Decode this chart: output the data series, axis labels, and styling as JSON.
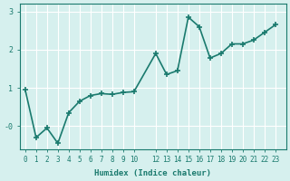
{
  "x": [
    0,
    1,
    2,
    3,
    4,
    5,
    6,
    7,
    8,
    9,
    10,
    12,
    13,
    14,
    15,
    16,
    17,
    18,
    19,
    20,
    21,
    22,
    23
  ],
  "y": [
    0.95,
    -0.3,
    -0.05,
    -0.45,
    0.35,
    0.65,
    0.8,
    0.85,
    0.83,
    0.88,
    0.9,
    1.9,
    1.35,
    1.45,
    2.85,
    2.6,
    1.78,
    1.9,
    2.15,
    2.15,
    2.25,
    2.45,
    2.65
  ],
  "line_color": "#1a7a6e",
  "marker": "+",
  "marker_size": 5,
  "bg_color": "#d6f0ee",
  "grid_color": "#ffffff",
  "xlabel": "Humidex (Indice chaleur)",
  "xlim": [
    -0.5,
    24
  ],
  "ylim": [
    -0.6,
    3.2
  ],
  "ytick_positions": [
    0,
    1,
    2,
    3
  ],
  "ytick_labels": [
    "-0",
    "1",
    "2",
    "3"
  ],
  "xtick_positions": [
    0,
    1,
    2,
    3,
    4,
    5,
    6,
    7,
    8,
    9,
    10,
    12,
    13,
    14,
    15,
    16,
    17,
    18,
    19,
    20,
    21,
    22,
    23
  ],
  "xtick_labels": [
    "0",
    "1",
    "2",
    "3",
    "4",
    "5",
    "6",
    "7",
    "8",
    "9",
    "10",
    "12",
    "13",
    "14",
    "15",
    "16",
    "17",
    "18",
    "19",
    "20",
    "21",
    "22",
    "23"
  ],
  "line_width": 1.2,
  "font_color": "#1a7a6e"
}
